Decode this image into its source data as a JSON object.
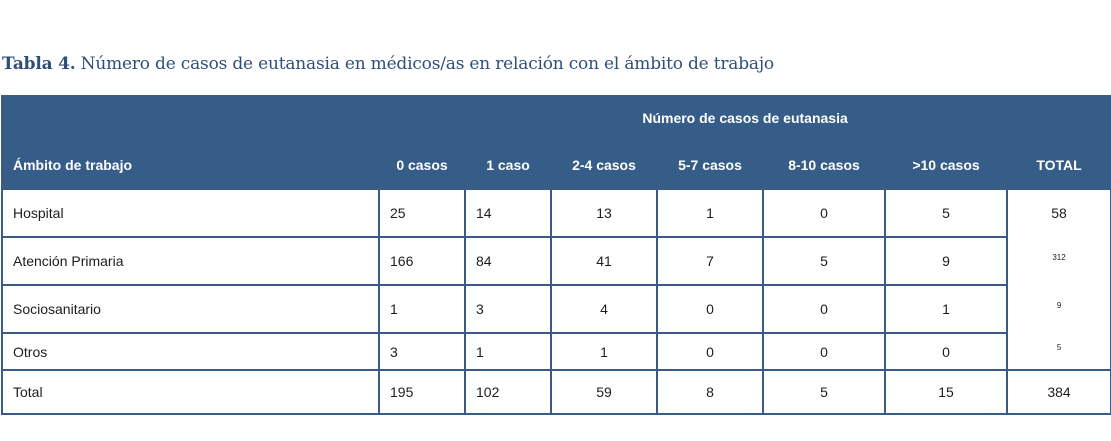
{
  "caption": {
    "lead": "Tabla 4.",
    "text": " Número de casos de eutanasia en médicos/as en relación con el ámbito de trabajo"
  },
  "table": {
    "group_header": "Número de casos de eutanasia",
    "columns": [
      "Ámbito de trabajo",
      "0 casos",
      "1 caso",
      "2-4 casos",
      "5-7 casos",
      "8-10 casos",
      ">10 casos",
      "TOTAL"
    ],
    "rows": [
      [
        "Hospital",
        "25",
        "14",
        "13",
        "1",
        "0",
        "5",
        "58"
      ],
      [
        "Atención Primaria",
        "166",
        "84",
        "41",
        "7",
        "5",
        "9",
        "312"
      ],
      [
        "Sociosanitario",
        "1",
        "3",
        "4",
        "0",
        "0",
        "1",
        "9"
      ],
      [
        "Otros",
        "3",
        "1",
        "1",
        "0",
        "0",
        "0",
        "5"
      ],
      [
        "Total",
        "195",
        "102",
        "59",
        "8",
        "5",
        "15",
        "384"
      ]
    ]
  }
}
